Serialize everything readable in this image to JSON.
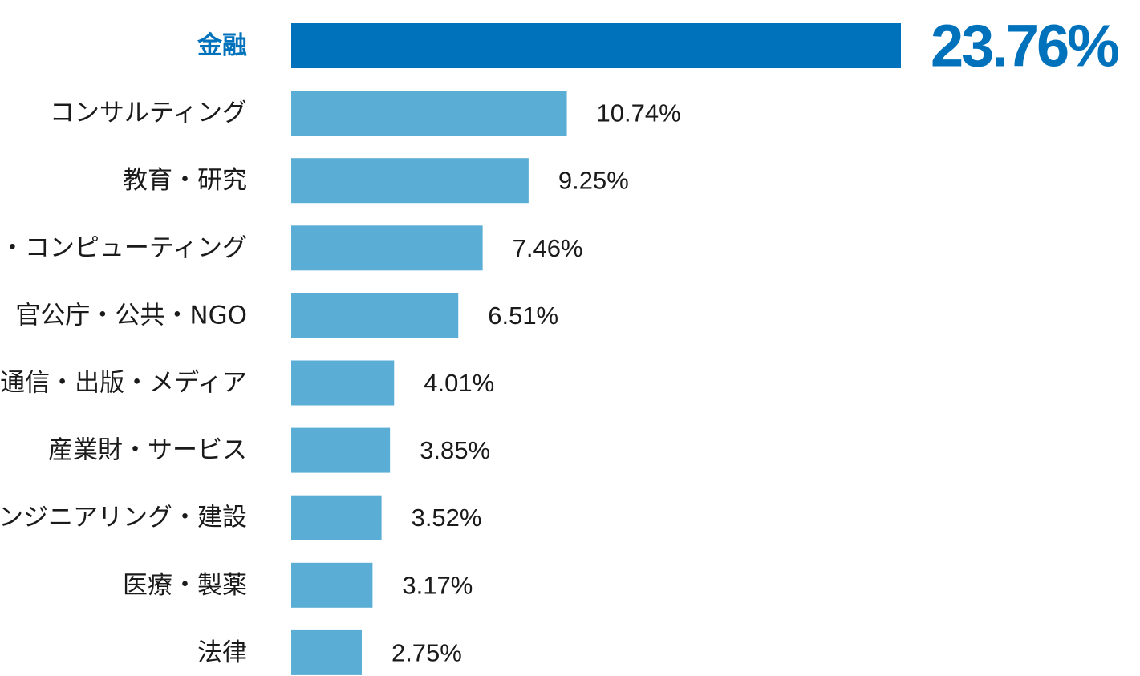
{
  "chart_data": {
    "type": "bar",
    "orientation": "horizontal",
    "categories": [
      "金融",
      "コンサルティング",
      "教育・研究",
      "IT・コンピューティング",
      "官公庁・公共・NGO",
      "通信・出版・メディア",
      "産業財・サービス",
      "エンジニアリング・建設",
      "医療・製薬",
      "法律"
    ],
    "values": [
      23.76,
      10.74,
      9.25,
      7.46,
      6.51,
      4.01,
      3.85,
      3.52,
      3.17,
      2.75
    ],
    "value_labels": [
      "23.76%",
      "10.74%",
      "9.25%",
      "7.46%",
      "6.51%",
      "4.01%",
      "3.85%",
      "3.52%",
      "3.17%",
      "2.75%"
    ],
    "highlight_index": 0,
    "colors": {
      "highlight": "#0072bc",
      "bar": "#5aadd4",
      "text": "#1a1a1a"
    },
    "grid": false,
    "legend": "none"
  }
}
